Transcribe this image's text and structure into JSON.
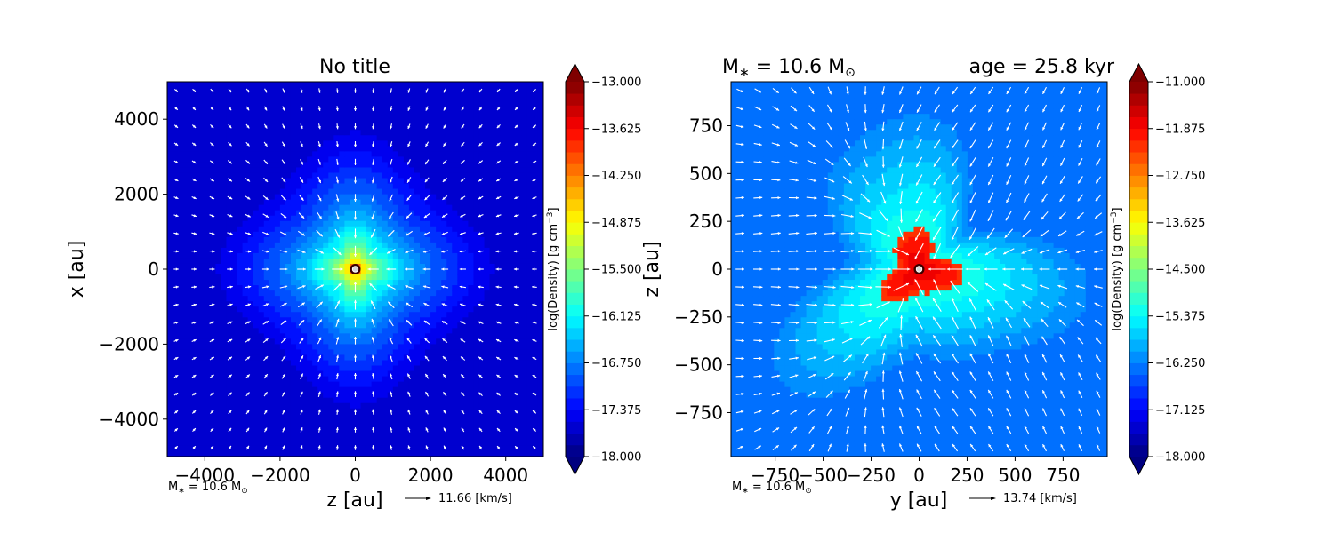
{
  "chart_data": [
    {
      "type": "heatmap",
      "title": "No title",
      "xlabel": "z [au]",
      "ylabel": "x [au]",
      "xlim": [
        -5000,
        5000
      ],
      "ylim": [
        -5000,
        5000
      ],
      "xticks": [
        -4000,
        -2000,
        0,
        2000,
        4000
      ],
      "xtick_labels": [
        "−4000",
        "−2000",
        "0",
        "2000",
        "4000"
      ],
      "yticks": [
        -4000,
        -2000,
        0,
        2000,
        4000
      ],
      "ytick_labels": [
        "−4000",
        "−2000",
        "0",
        "2000",
        "4000"
      ],
      "colorbar": {
        "label": "log(Density) [g cm",
        "label_exp": "−3",
        "label_close": "]",
        "vmin": -18.0,
        "vmax": -13.0,
        "ticks": [
          -13.0,
          -13.625,
          -14.25,
          -14.875,
          -15.5,
          -16.125,
          -16.75,
          -17.375,
          -18.0
        ],
        "tick_labels": [
          "−13.000",
          "−13.625",
          "−14.250",
          "−14.875",
          "−15.500",
          "−16.125",
          "−16.750",
          "−17.375",
          "−18.000"
        ]
      },
      "density_model": {
        "background": -17.6,
        "peak": -13.0,
        "core_radius": 60,
        "falloff_radius": 600,
        "envelope_radius": 2600
      },
      "mass_note": "M",
      "mass_note_sub": "∗",
      "mass_note_value": " = 10.6 M",
      "mass_note_sun": "⊙",
      "quiver_key_label": "11.66 [km/s]"
    },
    {
      "type": "heatmap",
      "title": "",
      "title_left": "M",
      "title_left_sub": "∗",
      "title_left_value": " = 10.6 M",
      "title_left_sun": "⊙",
      "title_right": "age = 25.8 kyr",
      "xlabel": "y [au]",
      "ylabel": "z [au]",
      "xlim": [
        -980,
        980
      ],
      "ylim": [
        -980,
        980
      ],
      "xticks": [
        -750,
        -500,
        -250,
        0,
        250,
        500,
        750
      ],
      "xtick_labels": [
        "−750",
        "−500",
        "−250",
        "0",
        "250",
        "500",
        "750"
      ],
      "yticks": [
        -750,
        -500,
        -250,
        0,
        250,
        500,
        750
      ],
      "ytick_labels": [
        "−750",
        "−500",
        "−250",
        "0",
        "250",
        "500",
        "750"
      ],
      "colorbar": {
        "label": "log(Density) [g cm",
        "label_exp": "−3",
        "label_close": "]",
        "vmin": -18.0,
        "vmax": -11.0,
        "ticks": [
          -11.0,
          -11.875,
          -12.75,
          -13.625,
          -14.5,
          -15.375,
          -16.25,
          -17.125,
          -18.0
        ],
        "tick_labels": [
          "−11.000",
          "−11.875",
          "−12.750",
          "−13.625",
          "−14.500",
          "−15.375",
          "−16.250",
          "−17.125",
          "−18.000"
        ]
      },
      "density_model": {
        "background": -16.4,
        "peak": -11.6,
        "blob_radius": 170,
        "envelope_radius": 700
      },
      "mass_note": "M",
      "mass_note_sub": "∗",
      "mass_note_value": " = 10.6 M",
      "mass_note_sun": "⊙",
      "quiver_key_label": "13.74 [km/s]"
    }
  ]
}
